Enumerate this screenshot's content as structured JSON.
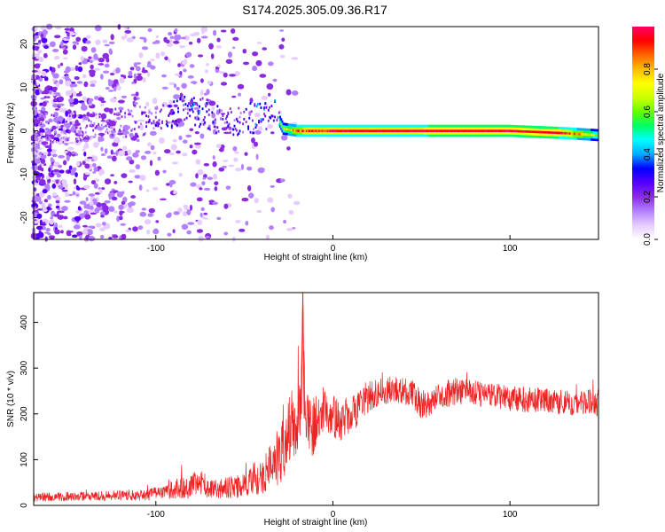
{
  "figure": {
    "title": "S174.2025.305.09.36.R17"
  },
  "chart_data": [
    {
      "type": "heatmap",
      "title": "S174.2025.305.09.36.R17",
      "xlabel": "Height of straight line (km)",
      "ylabel": "Frequency (Hz)",
      "xlim": [
        -169,
        150
      ],
      "ylim": [
        -25,
        24
      ],
      "xticks": [
        -100,
        0,
        100
      ],
      "xtick_labels": [
        "-100",
        "0",
        "100"
      ],
      "yticks": [
        -20,
        -10,
        0,
        10,
        20
      ],
      "ytick_labels": [
        "-20",
        "-10",
        "0",
        "10",
        "20"
      ],
      "colorbar": {
        "label": "Normalized spectral amplitude",
        "range": [
          0,
          1
        ],
        "ticks": [
          0.0,
          0.2,
          0.4,
          0.6,
          0.8
        ],
        "tick_labels": [
          "0.0",
          "0.2",
          "0.4",
          "0.6",
          "0.8"
        ],
        "colors": [
          "#ffffff",
          "#e6ccff",
          "#b380ff",
          "#8a2be2",
          "#5500ff",
          "#0000ff",
          "#00aaff",
          "#00ffff",
          "#00ff66",
          "#66ff00",
          "#ccff00",
          "#ffff00",
          "#ffbb00",
          "#ff6600",
          "#ff0000",
          "#ff0066"
        ]
      },
      "series": [
        {
          "name": "dominant-frequency-band",
          "x": [
            -169,
            -140,
            -110,
            -90,
            -80,
            -60,
            -45,
            -32,
            -28,
            -20,
            0,
            50,
            100,
            130,
            150
          ],
          "y": [
            0,
            1,
            2,
            4,
            5,
            2,
            3,
            4,
            0.5,
            0,
            0,
            0,
            0,
            -0.5,
            -1
          ],
          "amplitude": [
            0.2,
            0.25,
            0.3,
            0.4,
            0.45,
            0.35,
            0.45,
            0.5,
            0.6,
            0.8,
            0.9,
            0.9,
            0.95,
            0.9,
            0.6
          ]
        }
      ]
    },
    {
      "type": "line",
      "xlabel": "Height of straight line (km)",
      "ylabel": "SNR (10 * v/v)",
      "xlim": [
        -169,
        150
      ],
      "ylim": [
        0,
        465
      ],
      "xticks": [
        -100,
        0,
        100
      ],
      "xtick_labels": [
        "-100",
        "0",
        "100"
      ],
      "yticks": [
        0,
        100,
        200,
        300,
        400
      ],
      "ytick_labels": [
        "0",
        "100",
        "200",
        "300",
        "400"
      ],
      "color": "#ee2222",
      "series": [
        {
          "name": "SNR",
          "x": [
            -169,
            -140,
            -110,
            -95,
            -90,
            -80,
            -75,
            -70,
            -60,
            -50,
            -45,
            -40,
            -35,
            -30,
            -26,
            -24,
            -20,
            -18,
            -17,
            -16,
            -14,
            -12,
            -10,
            -8,
            -5,
            0,
            5,
            10,
            15,
            20,
            25,
            30,
            35,
            40,
            45,
            50,
            55,
            60,
            65,
            70,
            80,
            90,
            100,
            110,
            120,
            130,
            140,
            150
          ],
          "y": [
            18,
            20,
            22,
            28,
            35,
            40,
            55,
            35,
            38,
            45,
            60,
            60,
            90,
            110,
            140,
            170,
            180,
            210,
            465,
            230,
            185,
            170,
            175,
            200,
            210,
            195,
            185,
            200,
            215,
            240,
            245,
            250,
            255,
            250,
            245,
            220,
            225,
            240,
            245,
            250,
            245,
            240,
            235,
            230,
            230,
            225,
            225,
            225
          ],
          "spread": [
            10,
            10,
            12,
            16,
            22,
            26,
            30,
            22,
            24,
            28,
            35,
            38,
            50,
            65,
            75,
            80,
            70,
            65,
            0,
            70,
            70,
            65,
            60,
            55,
            50,
            45,
            45,
            42,
            40,
            36,
            32,
            30,
            30,
            30,
            30,
            32,
            30,
            30,
            30,
            30,
            28,
            28,
            28,
            28,
            28,
            28,
            28,
            30
          ]
        }
      ]
    }
  ]
}
